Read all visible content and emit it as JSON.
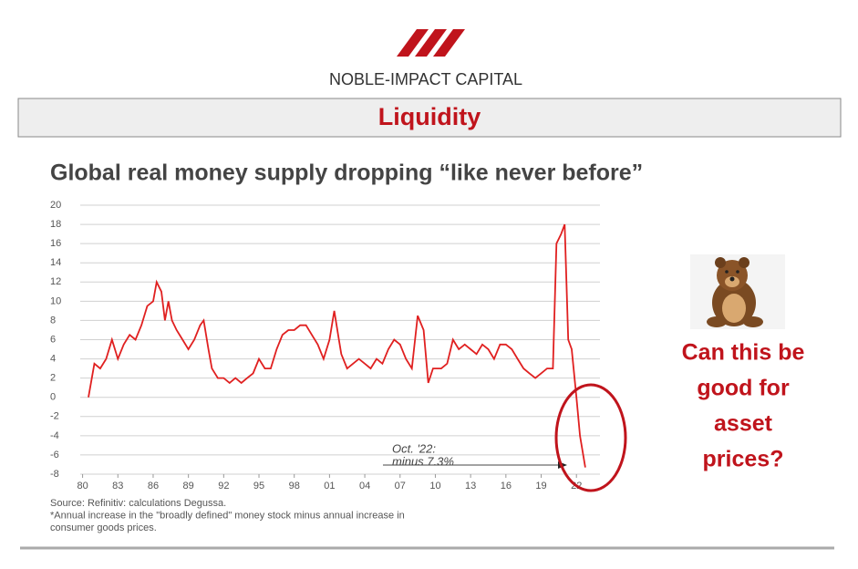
{
  "header": {
    "brand": "NOBLE-IMPACT CAPITAL",
    "section": "Liquidity"
  },
  "callout": [
    "Can this be",
    "good for",
    "asset",
    "prices?"
  ],
  "chart_data": {
    "type": "line",
    "title": "Global real money supply dropping “like never before”",
    "annotation": [
      "Oct. '22:",
      "minus 7.3%"
    ],
    "notes": [
      "Source: Refinitiv: calculations Degussa.",
      "*Annual increase in the \"broadly defined\" money stock minus annual increase in",
      "consumer goods prices."
    ],
    "color": "#e02020",
    "x": [
      1980.5,
      1981,
      1981.5,
      1982,
      1982.5,
      1983,
      1983.5,
      1984,
      1984.5,
      1985,
      1985.5,
      1986,
      1986.3,
      1986.7,
      1987,
      1987.3,
      1987.6,
      1988,
      1988.5,
      1989,
      1989.5,
      1990,
      1990.3,
      1990.7,
      1991,
      1991.5,
      1992,
      1992.5,
      1993,
      1993.5,
      1994,
      1994.5,
      1995,
      1995.5,
      1996,
      1996.5,
      1997,
      1997.5,
      1998,
      1998.5,
      1999,
      1999.5,
      2000,
      2000.5,
      2001,
      2001.4,
      2001.8,
      2002,
      2002.5,
      2003,
      2003.5,
      2004,
      2004.5,
      2005,
      2005.5,
      2006,
      2006.5,
      2007,
      2007.5,
      2008,
      2008.5,
      2009,
      2009.4,
      2009.8,
      2010.5,
      2011,
      2011.5,
      2012,
      2012.5,
      2013,
      2013.5,
      2014,
      2014.5,
      2015,
      2015.5,
      2016,
      2016.5,
      2017,
      2017.5,
      2018,
      2018.5,
      2019,
      2019.5,
      2020,
      2020.3,
      2020.7,
      2021,
      2021.3,
      2021.6,
      2022,
      2022.3,
      2022.75
    ],
    "values": [
      0,
      3.5,
      3,
      4,
      6,
      4,
      5.5,
      6.5,
      6,
      7.5,
      9.5,
      10,
      12,
      11,
      8,
      10,
      8,
      7,
      6,
      5,
      6,
      7.5,
      8,
      5,
      3,
      2,
      2,
      1.5,
      2,
      1.5,
      2,
      2.5,
      4,
      3,
      3,
      5,
      6.5,
      7,
      7,
      7.5,
      7.5,
      6.5,
      5.5,
      4,
      6,
      9,
      6,
      4.5,
      3,
      3.5,
      4,
      3.5,
      3,
      4,
      3.5,
      5,
      6,
      5.5,
      4,
      3,
      8.5,
      7,
      1.5,
      3,
      3,
      3.5,
      6,
      5,
      5.5,
      5,
      4.5,
      5.5,
      5,
      4,
      5.5,
      5.5,
      5,
      4,
      3,
      2.5,
      2,
      2.5,
      3,
      3,
      16,
      17,
      18,
      6,
      5,
      0,
      -4,
      -7.3
    ],
    "xlim": [
      1979.8,
      2024
    ],
    "xticks": [
      {
        "value": 1980,
        "label": "80"
      },
      {
        "value": 1983,
        "label": "83"
      },
      {
        "value": 1986,
        "label": "86"
      },
      {
        "value": 1989,
        "label": "89"
      },
      {
        "value": 1992,
        "label": "92"
      },
      {
        "value": 1995,
        "label": "95"
      },
      {
        "value": 1998,
        "label": "98"
      },
      {
        "value": 2001,
        "label": "01"
      },
      {
        "value": 2004,
        "label": "04"
      },
      {
        "value": 2007,
        "label": "07"
      },
      {
        "value": 2010,
        "label": "10"
      },
      {
        "value": 2013,
        "label": "13"
      },
      {
        "value": 2016,
        "label": "16"
      },
      {
        "value": 2019,
        "label": "19"
      },
      {
        "value": 2022,
        "label": "22"
      }
    ],
    "ylim": [
      -8,
      20
    ],
    "yticks": [
      -8,
      -6,
      -4,
      -2,
      0,
      2,
      4,
      6,
      8,
      10,
      12,
      14,
      16,
      18,
      20
    ],
    "grid": true
  }
}
